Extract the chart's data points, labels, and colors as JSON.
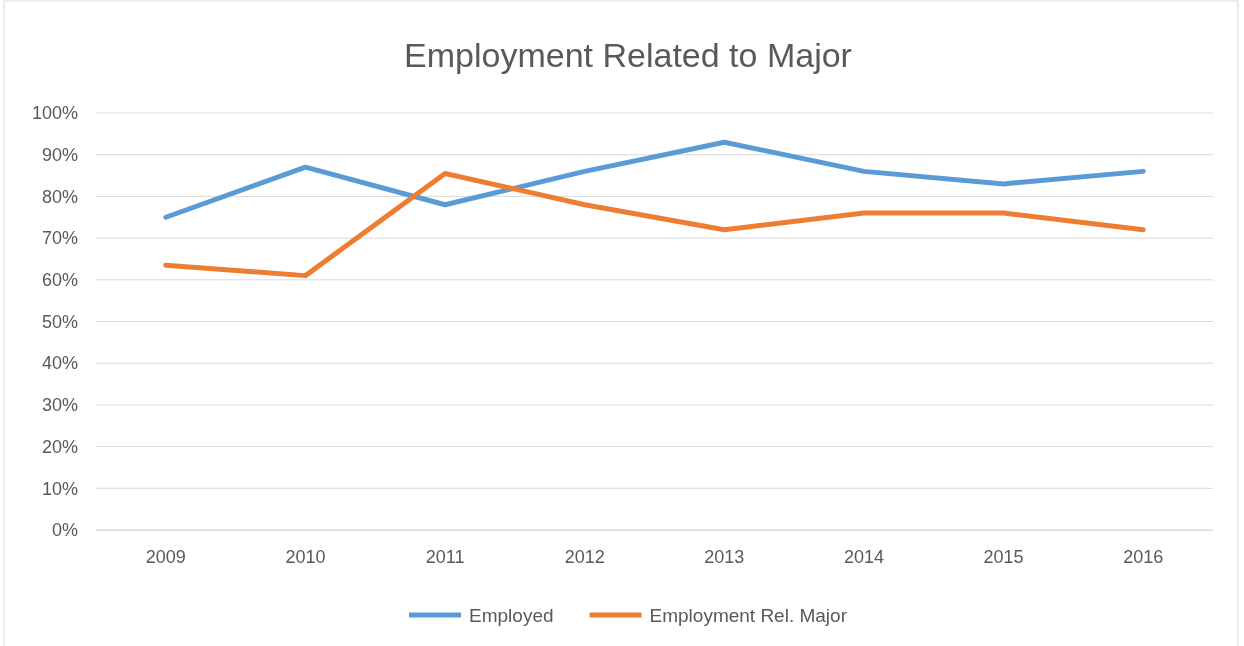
{
  "chart_data": {
    "type": "line",
    "title": "Employment Related to Major",
    "categories": [
      "2009",
      "2010",
      "2011",
      "2012",
      "2013",
      "2014",
      "2015",
      "2016"
    ],
    "series": [
      {
        "name": "Employed",
        "color": "#5b9bd5",
        "values": [
          75,
          87,
          78,
          86,
          93,
          86,
          83,
          86
        ]
      },
      {
        "name": "Employment Rel. Major",
        "color": "#ed7d31",
        "values": [
          63.5,
          61,
          85.5,
          78,
          72,
          76,
          76,
          72
        ]
      }
    ],
    "ylim": [
      0,
      100
    ],
    "yticks": [
      {
        "value": 0,
        "label": "0%"
      },
      {
        "value": 10,
        "label": "10%"
      },
      {
        "value": 20,
        "label": "20%"
      },
      {
        "value": 30,
        "label": "30%"
      },
      {
        "value": 40,
        "label": "40%"
      },
      {
        "value": 50,
        "label": "50%"
      },
      {
        "value": 60,
        "label": "60%"
      },
      {
        "value": 70,
        "label": "70%"
      },
      {
        "value": 80,
        "label": "80%"
      },
      {
        "value": 90,
        "label": "90%"
      },
      {
        "value": 100,
        "label": "100%"
      }
    ],
    "grid": "y",
    "legend": "bottom",
    "marker": "none",
    "line_style": "solid"
  }
}
